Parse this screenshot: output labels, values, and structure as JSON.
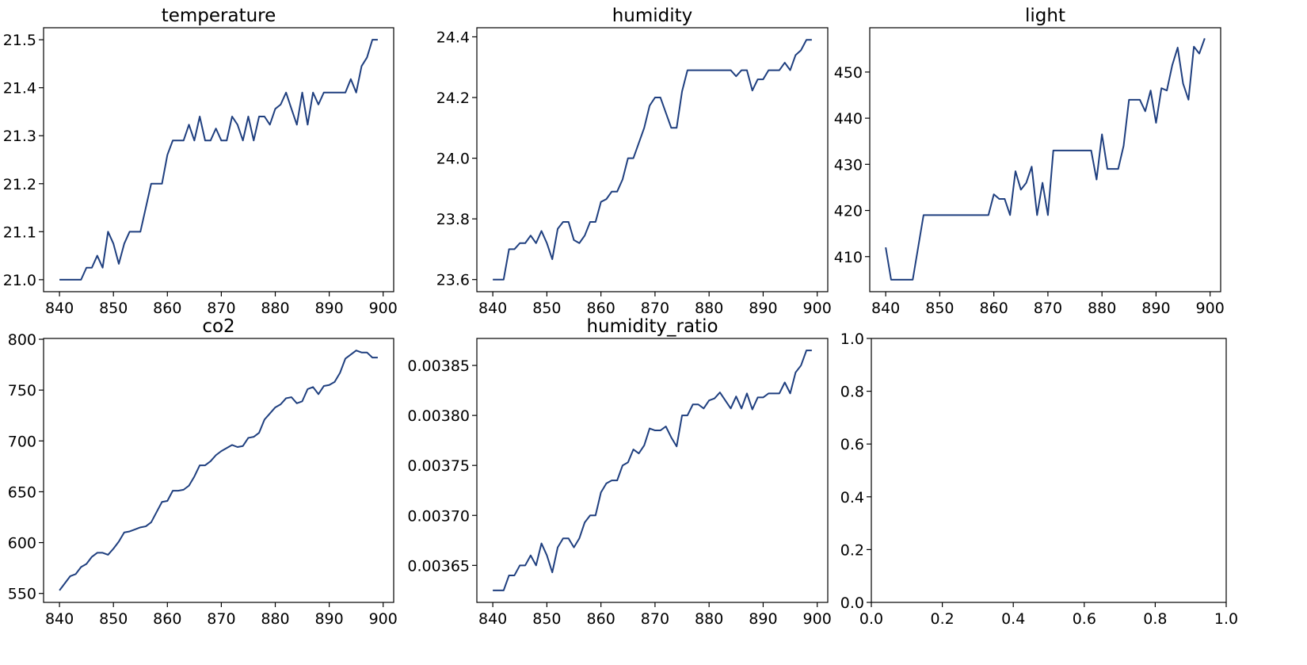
{
  "chart_data": [
    {
      "type": "line",
      "title": "temperature",
      "color": "#1f3f7f",
      "x": [
        840,
        841,
        842,
        843,
        844,
        845,
        846,
        847,
        848,
        849,
        850,
        851,
        852,
        853,
        854,
        855,
        856,
        857,
        858,
        859,
        860,
        861,
        862,
        863,
        864,
        865,
        866,
        867,
        868,
        869,
        870,
        871,
        872,
        873,
        874,
        875,
        876,
        877,
        878,
        879,
        880,
        881,
        882,
        883,
        884,
        885,
        886,
        887,
        888,
        889,
        890,
        891,
        892,
        893,
        894,
        895,
        896,
        897,
        898,
        899
      ],
      "values": [
        21.0,
        21.0,
        21.0,
        21.0,
        21.0,
        21.025,
        21.025,
        21.05,
        21.025,
        21.1,
        21.075,
        21.033,
        21.075,
        21.1,
        21.1,
        21.1,
        21.15,
        21.2,
        21.2,
        21.2,
        21.26,
        21.29,
        21.29,
        21.29,
        21.323,
        21.29,
        21.34,
        21.29,
        21.29,
        21.315,
        21.29,
        21.29,
        21.34,
        21.323,
        21.29,
        21.34,
        21.29,
        21.34,
        21.34,
        21.323,
        21.356,
        21.365,
        21.39,
        21.356,
        21.323,
        21.39,
        21.323,
        21.39,
        21.365,
        21.39,
        21.39,
        21.39,
        21.39,
        21.39,
        21.418,
        21.39,
        21.445,
        21.463,
        21.5,
        21.5
      ],
      "xlim": [
        837.05,
        901.95
      ],
      "xticks": [
        840,
        850,
        860,
        870,
        880,
        890,
        900
      ],
      "ylim": [
        20.975,
        21.525
      ],
      "yticks": [
        {
          "value": 21,
          "label": "21.0"
        },
        21.1,
        21.2,
        21.3,
        21.4,
        21.5
      ]
    },
    {
      "type": "line",
      "title": "humidity",
      "color": "#1f3f7f",
      "x": [
        840,
        841,
        842,
        843,
        844,
        845,
        846,
        847,
        848,
        849,
        850,
        851,
        852,
        853,
        854,
        855,
        856,
        857,
        858,
        859,
        860,
        861,
        862,
        863,
        864,
        865,
        866,
        867,
        868,
        869,
        870,
        871,
        872,
        873,
        874,
        875,
        876,
        877,
        878,
        879,
        880,
        881,
        882,
        883,
        884,
        885,
        886,
        887,
        888,
        889,
        890,
        891,
        892,
        893,
        894,
        895,
        896,
        897,
        898,
        899
      ],
      "values": [
        23.6,
        23.6,
        23.6,
        23.7,
        23.7,
        23.72,
        23.72,
        23.745,
        23.72,
        23.76,
        23.72,
        23.667,
        23.767,
        23.79,
        23.79,
        23.73,
        23.72,
        23.745,
        23.79,
        23.79,
        23.856,
        23.865,
        23.89,
        23.89,
        23.93,
        24.0,
        24.0,
        24.05,
        24.1,
        24.173,
        24.2,
        24.2,
        24.15,
        24.1,
        24.1,
        24.22,
        24.29,
        24.29,
        24.29,
        24.29,
        24.29,
        24.29,
        24.29,
        24.29,
        24.29,
        24.27,
        24.29,
        24.29,
        24.223,
        24.26,
        24.26,
        24.29,
        24.29,
        24.29,
        24.315,
        24.29,
        24.34,
        24.356,
        24.39,
        24.39
      ],
      "xlim": [
        837.05,
        901.95
      ],
      "xticks": [
        840,
        850,
        860,
        870,
        880,
        890,
        900
      ],
      "ylim": [
        23.56,
        24.43
      ],
      "yticks": [
        23.6,
        23.8,
        {
          "value": 24,
          "label": "24.0"
        },
        24.2,
        24.4
      ]
    },
    {
      "type": "line",
      "title": "light",
      "color": "#1f3f7f",
      "x": [
        840,
        841,
        842,
        843,
        844,
        845,
        846,
        847,
        848,
        849,
        850,
        851,
        852,
        853,
        854,
        855,
        856,
        857,
        858,
        859,
        860,
        861,
        862,
        863,
        864,
        865,
        866,
        867,
        868,
        869,
        870,
        871,
        872,
        873,
        874,
        875,
        876,
        877,
        878,
        879,
        880,
        881,
        882,
        883,
        884,
        885,
        886,
        887,
        888,
        889,
        890,
        891,
        892,
        893,
        894,
        895,
        896,
        897,
        898,
        899
      ],
      "values": [
        412,
        405,
        405,
        405,
        405,
        405,
        412,
        419,
        419,
        419,
        419,
        419,
        419,
        419,
        419,
        419,
        419,
        419,
        419,
        419,
        423.5,
        422.5,
        422.5,
        419,
        428.5,
        424.5,
        426,
        429.5,
        419,
        426,
        419,
        433,
        433,
        433,
        433,
        433,
        433,
        433,
        433,
        426.7,
        436.5,
        429,
        429,
        429,
        434,
        444,
        444,
        444,
        441.5,
        446,
        439,
        446.5,
        446,
        451.5,
        455.3,
        447.5,
        444,
        455.5,
        454,
        457.3
      ],
      "xlim": [
        837.05,
        901.95
      ],
      "xticks": [
        840,
        850,
        860,
        870,
        880,
        890,
        900
      ],
      "ylim": [
        402.4,
        459.6
      ],
      "yticks": [
        410,
        420,
        430,
        440,
        450
      ]
    },
    {
      "type": "line",
      "title": "co2",
      "color": "#1f3f7f",
      "x": [
        840,
        841,
        842,
        843,
        844,
        845,
        846,
        847,
        848,
        849,
        850,
        851,
        852,
        853,
        854,
        855,
        856,
        857,
        858,
        859,
        860,
        861,
        862,
        863,
        864,
        865,
        866,
        867,
        868,
        869,
        870,
        871,
        872,
        873,
        874,
        875,
        876,
        877,
        878,
        879,
        880,
        881,
        882,
        883,
        884,
        885,
        886,
        887,
        888,
        889,
        890,
        891,
        892,
        893,
        894,
        895,
        896,
        897,
        898,
        899
      ],
      "values": [
        553,
        560,
        567,
        569,
        576,
        579,
        586,
        590,
        590,
        588,
        594,
        601,
        610,
        611,
        613,
        615,
        616,
        620,
        630,
        640,
        641,
        651,
        651,
        652,
        656,
        665,
        676,
        676,
        680,
        686,
        690,
        693,
        696,
        694,
        695,
        703,
        704,
        708,
        721,
        727,
        733,
        736,
        742,
        743,
        737,
        739,
        751,
        753,
        746,
        754,
        755,
        758,
        767,
        781,
        785,
        789,
        787,
        787,
        782,
        782
      ],
      "xlim": [
        837.05,
        901.95
      ],
      "xticks": [
        840,
        850,
        860,
        870,
        880,
        890,
        900
      ],
      "ylim": [
        541.2,
        800.8
      ],
      "yticks": [
        550,
        600,
        650,
        700,
        750,
        800
      ]
    },
    {
      "type": "line",
      "title": "humidity_ratio",
      "color": "#1f3f7f",
      "x": [
        840,
        841,
        842,
        843,
        844,
        845,
        846,
        847,
        848,
        849,
        850,
        851,
        852,
        853,
        854,
        855,
        856,
        857,
        858,
        859,
        860,
        861,
        862,
        863,
        864,
        865,
        866,
        867,
        868,
        869,
        870,
        871,
        872,
        873,
        874,
        875,
        876,
        877,
        878,
        879,
        880,
        881,
        882,
        883,
        884,
        885,
        886,
        887,
        888,
        889,
        890,
        891,
        892,
        893,
        894,
        895,
        896,
        897,
        898,
        899
      ],
      "values": [
        0.003625,
        0.003625,
        0.003625,
        0.00364,
        0.00364,
        0.00365,
        0.00365,
        0.00366,
        0.00365,
        0.003672,
        0.00366,
        0.003643,
        0.003668,
        0.003677,
        0.003677,
        0.003668,
        0.003677,
        0.003693,
        0.0037,
        0.0037,
        0.003723,
        0.003732,
        0.003735,
        0.003735,
        0.00375,
        0.003753,
        0.003766,
        0.003762,
        0.00377,
        0.003787,
        0.003785,
        0.003785,
        0.003789,
        0.003778,
        0.003769,
        0.0038,
        0.0038,
        0.003811,
        0.003811,
        0.003807,
        0.003815,
        0.003817,
        0.003823,
        0.003815,
        0.003807,
        0.003819,
        0.003807,
        0.003822,
        0.003806,
        0.003818,
        0.003818,
        0.003822,
        0.003822,
        0.003822,
        0.003833,
        0.003822,
        0.003843,
        0.00385,
        0.003865,
        0.003865
      ],
      "xlim": [
        837.05,
        901.95
      ],
      "xticks": [
        840,
        850,
        860,
        870,
        880,
        890,
        900
      ],
      "ylim": [
        0.003613,
        0.003877
      ],
      "yticks": [
        0.00365,
        {
          "value": 0.0037,
          "label": "0.00370"
        },
        0.00375,
        {
          "value": 0.0038,
          "label": "0.00380"
        },
        0.00385
      ]
    },
    {
      "type": "empty",
      "xlim": [
        0,
        1
      ],
      "xticks": [
        {
          "value": 0,
          "label": "0.0"
        },
        0.2,
        0.4,
        0.6,
        0.8,
        {
          "value": 1,
          "label": "1.0"
        }
      ],
      "ylim": [
        0,
        1
      ],
      "yticks": [
        {
          "value": 0,
          "label": "0.0"
        },
        0.2,
        0.4,
        0.6,
        0.8,
        {
          "value": 1,
          "label": "1.0"
        }
      ]
    }
  ]
}
